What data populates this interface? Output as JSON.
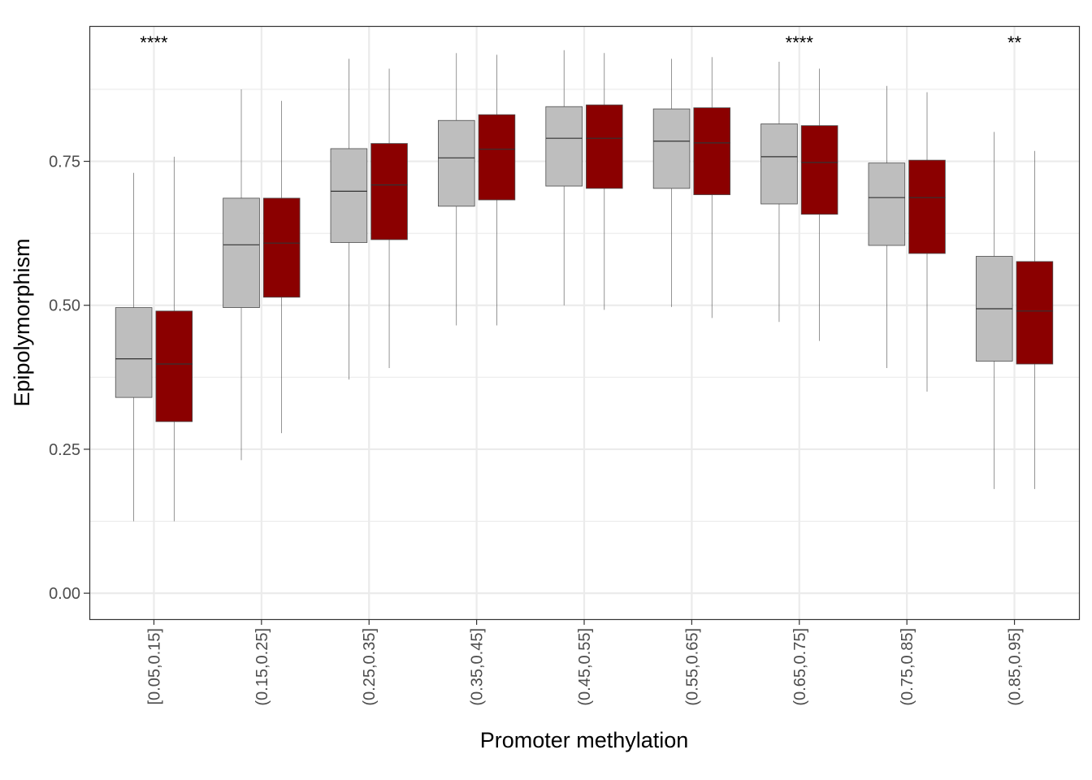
{
  "chart_data": {
    "type": "boxplot",
    "xlabel": "Promoter methylation",
    "ylabel": "Epipolymorphism",
    "ylim": [
      -0.045,
      0.985
    ],
    "y_ticks": [
      0.0,
      0.25,
      0.5,
      0.75
    ],
    "y_tick_labels": [
      "0.00",
      "0.25",
      "0.50",
      "0.75"
    ],
    "grid": true,
    "legend": "none",
    "categories": [
      "[0.05,0.15]",
      "(0.15,0.25]",
      "(0.25,0.35]",
      "(0.35,0.45]",
      "(0.45,0.55]",
      "(0.55,0.65]",
      "(0.65,0.75]",
      "(0.75,0.85]",
      "(0.85,0.95]"
    ],
    "series": [
      {
        "color": "#bebebe",
        "boxes": [
          {
            "min": 0.125,
            "q1": 0.34,
            "median": 0.407,
            "q3": 0.496,
            "max": 0.73
          },
          {
            "min": 0.231,
            "q1": 0.496,
            "median": 0.605,
            "q3": 0.686,
            "max": 0.875
          },
          {
            "min": 0.371,
            "q1": 0.609,
            "median": 0.698,
            "q3": 0.772,
            "max": 0.928
          },
          {
            "min": 0.465,
            "q1": 0.672,
            "median": 0.756,
            "q3": 0.821,
            "max": 0.938
          },
          {
            "min": 0.5,
            "q1": 0.707,
            "median": 0.79,
            "q3": 0.845,
            "max": 0.943
          },
          {
            "min": 0.497,
            "q1": 0.703,
            "median": 0.785,
            "q3": 0.841,
            "max": 0.928
          },
          {
            "min": 0.471,
            "q1": 0.676,
            "median": 0.758,
            "q3": 0.815,
            "max": 0.923
          },
          {
            "min": 0.391,
            "q1": 0.604,
            "median": 0.687,
            "q3": 0.747,
            "max": 0.881
          },
          {
            "min": 0.181,
            "q1": 0.403,
            "median": 0.494,
            "q3": 0.585,
            "max": 0.801
          }
        ]
      },
      {
        "color": "#8b0000",
        "boxes": [
          {
            "min": 0.125,
            "q1": 0.298,
            "median": 0.398,
            "q3": 0.49,
            "max": 0.758
          },
          {
            "min": 0.278,
            "q1": 0.514,
            "median": 0.608,
            "q3": 0.686,
            "max": 0.855
          },
          {
            "min": 0.391,
            "q1": 0.614,
            "median": 0.709,
            "q3": 0.781,
            "max": 0.911
          },
          {
            "min": 0.465,
            "q1": 0.683,
            "median": 0.771,
            "q3": 0.831,
            "max": 0.935
          },
          {
            "min": 0.492,
            "q1": 0.703,
            "median": 0.79,
            "q3": 0.848,
            "max": 0.938
          },
          {
            "min": 0.478,
            "q1": 0.692,
            "median": 0.782,
            "q3": 0.843,
            "max": 0.931
          },
          {
            "min": 0.438,
            "q1": 0.658,
            "median": 0.748,
            "q3": 0.812,
            "max": 0.911
          },
          {
            "min": 0.35,
            "q1": 0.59,
            "median": 0.687,
            "q3": 0.752,
            "max": 0.87
          },
          {
            "min": 0.181,
            "q1": 0.398,
            "median": 0.49,
            "q3": 0.576,
            "max": 0.768
          }
        ]
      }
    ],
    "annotations": [
      "****",
      "",
      "",
      "",
      "",
      "",
      "****",
      "",
      "**"
    ]
  }
}
